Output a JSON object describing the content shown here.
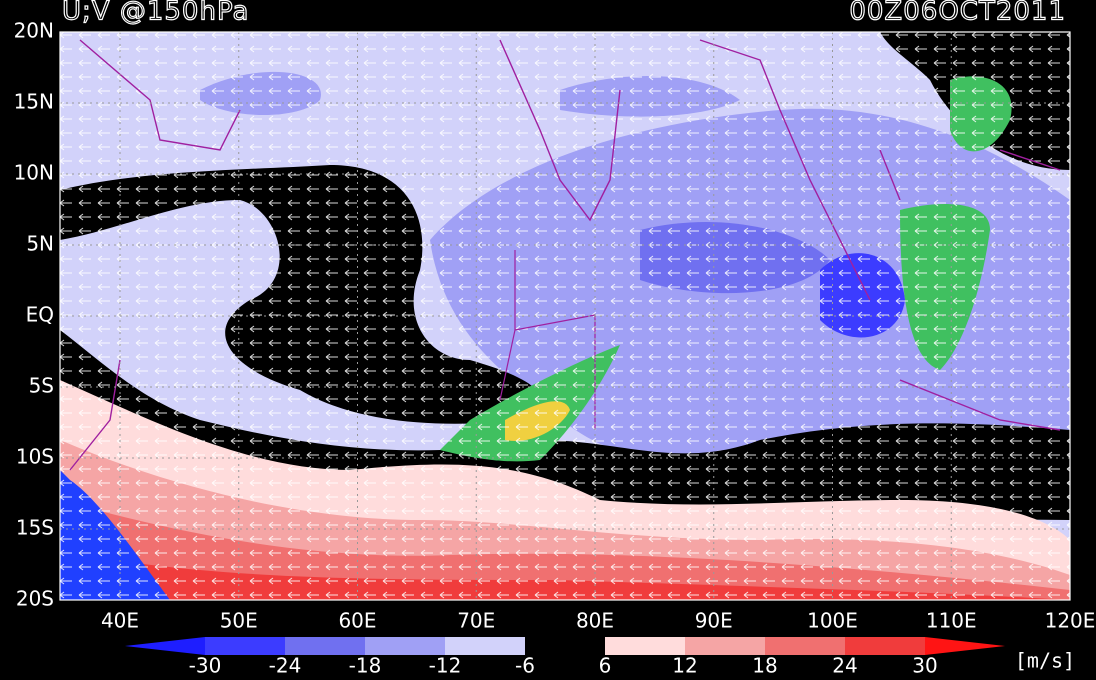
{
  "header": {
    "title": "U;V @150hPa",
    "time": "00Z06OCT2011"
  },
  "lat_labels": [
    "20N",
    "15N",
    "10N",
    "5N",
    "EQ",
    "5S",
    "10S",
    "15S",
    "20S"
  ],
  "lon_labels": [
    "40E",
    "50E",
    "60E",
    "70E",
    "80E",
    "90E",
    "100E",
    "110E",
    "120E"
  ],
  "colorbar": {
    "labels": [
      "-30",
      "-24",
      "-18",
      "-12",
      "-6",
      "6",
      "12",
      "18",
      "24",
      "30"
    ],
    "colors": [
      "#1e1eff",
      "#3c3cff",
      "#7070f0",
      "#a0a0f5",
      "#d2d2fa",
      "#000000",
      "#ffdcdc",
      "#f5a5a5",
      "#f07070",
      "#f03c3c",
      "#ff1414"
    ],
    "unit": "[m/s]"
  }
}
